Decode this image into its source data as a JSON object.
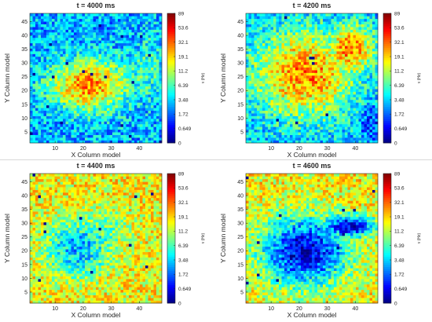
{
  "chart_data": [
    {
      "type": "heatmap",
      "title": "t = 4000 ms",
      "xlabel": "X Column model",
      "ylabel": "Y Column model",
      "xlim": [
        1,
        48
      ],
      "ylim": [
        1,
        48
      ],
      "xticks": [
        10,
        20,
        30,
        40
      ],
      "yticks": [
        5,
        10,
        15,
        20,
        25,
        30,
        35,
        40,
        45
      ],
      "colorbar_label": "ν (Hz)",
      "colorbar_ticks": [
        "0",
        "0.649",
        "1.72",
        "3.48",
        "6.39",
        "11.2",
        "19.1",
        "32.1",
        "53.6",
        "89"
      ],
      "colorscale": "jet (log)",
      "pattern": "high-rate blob centered near (22, 22) spanning x 8–36, y 13–30 (~30–50 Hz); background ~2–6 Hz"
    },
    {
      "type": "heatmap",
      "title": "t = 4200 ms",
      "xlabel": "X Column model",
      "ylabel": "Y Column model",
      "xlim": [
        1,
        48
      ],
      "ylim": [
        1,
        48
      ],
      "xticks": [
        10,
        20,
        30,
        40
      ],
      "yticks": [
        5,
        10,
        15,
        20,
        25,
        30,
        35,
        40,
        45
      ],
      "colorbar_label": "ν (Hz)",
      "colorbar_ticks": [
        "0",
        "0.649",
        "1.72",
        "3.48",
        "6.39",
        "11.2",
        "19.1",
        "32.1",
        "53.6",
        "89"
      ],
      "colorscale": "jet (log)",
      "pattern": "expanded high-rate region covering x 3–45, y 8–44 (~20–40 Hz); low-rate corners"
    },
    {
      "type": "heatmap",
      "title": "t = 4400 ms",
      "xlabel": "X Column model",
      "ylabel": "Y Column model",
      "xlim": [
        1,
        48
      ],
      "ylim": [
        1,
        48
      ],
      "xticks": [
        10,
        20,
        30,
        40
      ],
      "yticks": [
        5,
        10,
        15,
        20,
        25,
        30,
        35,
        40,
        45
      ],
      "colorbar_label": "ν (Hz)",
      "colorbar_ticks": [
        "0",
        "0.649",
        "1.72",
        "3.48",
        "6.39",
        "11.2",
        "19.1",
        "32.1",
        "53.6",
        "89"
      ],
      "colorscale": "jet (log)",
      "pattern": "ring of elevated activity around a low-rate core near (18, 20); ~1–5 Hz inside, ~15–35 Hz at edges"
    },
    {
      "type": "heatmap",
      "title": "t = 4600 ms",
      "xlabel": "X Column model",
      "ylabel": "Y Column model",
      "xlim": [
        1,
        48
      ],
      "ylim": [
        1,
        48
      ],
      "xticks": [
        10,
        20,
        30,
        40
      ],
      "yticks": [
        5,
        10,
        15,
        20,
        25,
        30,
        35,
        40,
        45
      ],
      "colorbar_label": "ν (Hz)",
      "colorbar_ticks": [
        "0",
        "0.649",
        "1.72",
        "3.48",
        "6.39",
        "11.2",
        "19.1",
        "32.1",
        "53.6",
        "89"
      ],
      "colorscale": "jet (log)",
      "pattern": "large silent region (~0–0.6 Hz) spanning x 6–40, y 6–35 with a tongue toward the top-right; active border ~10–30 Hz"
    }
  ]
}
